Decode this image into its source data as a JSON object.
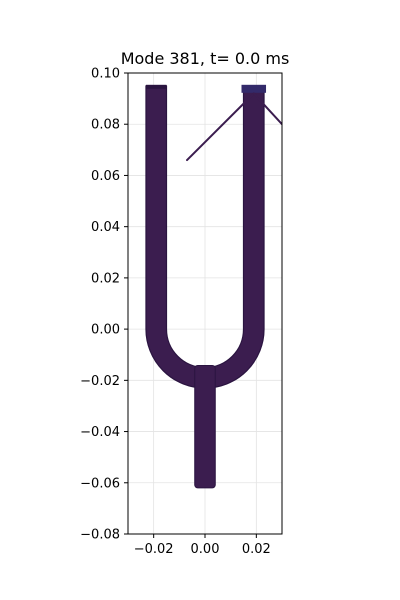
{
  "chart_data": {
    "type": "scatter",
    "title": "Mode 381, t=  0.0 ms",
    "xlabel": "",
    "ylabel": "",
    "xlim": [
      -0.03,
      0.03
    ],
    "ylim": [
      -0.08,
      0.1
    ],
    "grid": true,
    "x_ticks": [
      -0.02,
      0.0,
      0.02
    ],
    "x_tick_labels": [
      "−0.02",
      "0.00",
      "0.02"
    ],
    "y_ticks": [
      -0.08,
      -0.06,
      -0.04,
      -0.02,
      0.0,
      0.02,
      0.04,
      0.06,
      0.08,
      0.1
    ],
    "y_tick_labels": [
      "−0.08",
      "−0.06",
      "−0.04",
      "−0.02",
      "0.00",
      "0.02",
      "0.04",
      "0.06",
      "0.08",
      "0.10"
    ],
    "colors": {
      "fill": "#3b1d4f",
      "edge": "#2a1440",
      "tip": "#332a6a",
      "grid": "#e3e3e3"
    },
    "shape": {
      "description": "tuning fork mesh",
      "left_prong": {
        "x_min": -0.023,
        "x_max": -0.015,
        "y_bottom": 0.0,
        "y_top": 0.095
      },
      "right_prong": {
        "x_min": 0.015,
        "x_max": 0.023,
        "y_bottom": 0.0,
        "y_top": 0.095
      },
      "bend": {
        "center": [
          0.0,
          0.0
        ],
        "outer_radius": 0.023,
        "inner_radius": 0.015
      },
      "stem": {
        "x_min": -0.004,
        "x_max": 0.004,
        "y_top": -0.015,
        "y_bottom": -0.062
      },
      "spikes": [
        {
          "from": [
            0.019,
            0.092
          ],
          "to": [
            -0.007,
            0.066
          ]
        },
        {
          "from": [
            0.019,
            0.092
          ],
          "to": [
            0.03,
            0.08
          ]
        }
      ]
    }
  }
}
